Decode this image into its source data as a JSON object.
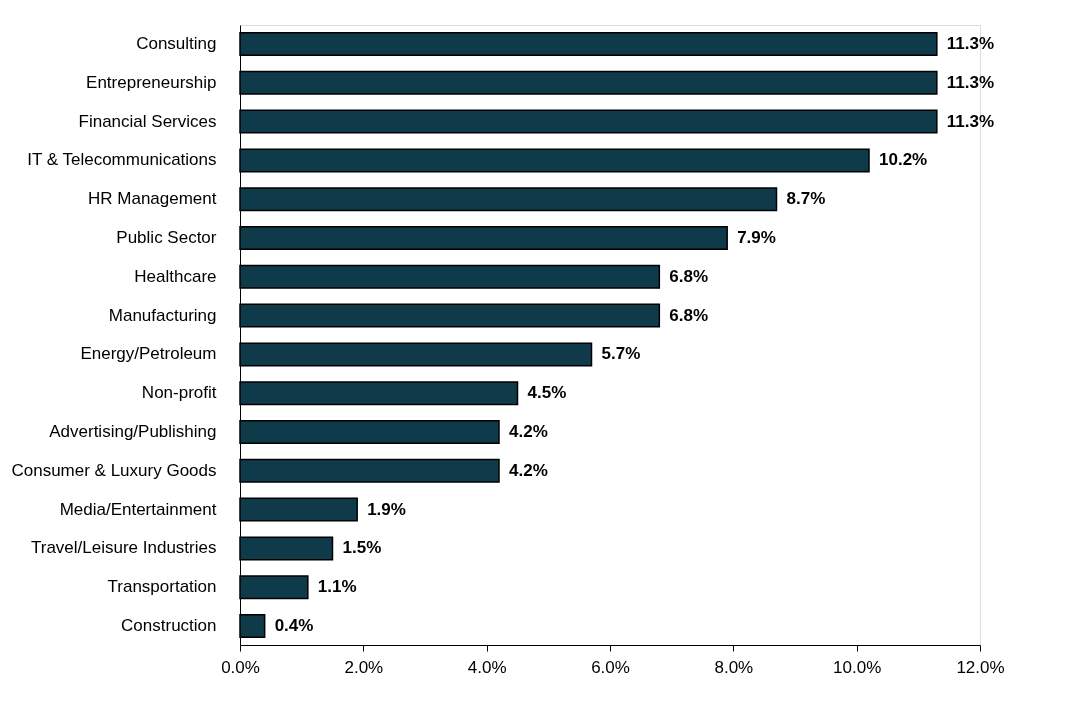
{
  "chart_data": {
    "type": "bar",
    "orientation": "horizontal",
    "categories": [
      "Consulting",
      "Entrepreneurship",
      "Financial Services",
      "IT & Telecommunications",
      "HR Management",
      "Public Sector",
      "Healthcare",
      "Manufacturing",
      "Energy/Petroleum",
      "Non-profit",
      "Advertising/Publishing",
      "Consumer & Luxury Goods",
      "Media/Entertainment",
      "Travel/Leisure Industries",
      "Transportation",
      "Construction"
    ],
    "values": [
      11.3,
      11.3,
      11.3,
      10.2,
      8.7,
      7.9,
      6.8,
      6.8,
      5.7,
      4.5,
      4.2,
      4.2,
      1.9,
      1.5,
      1.1,
      0.4
    ],
    "value_labels": [
      "11.3%",
      "11.3%",
      "11.3%",
      "10.2%",
      "8.7%",
      "7.9%",
      "6.8%",
      "6.8%",
      "5.7%",
      "4.5%",
      "4.2%",
      "4.2%",
      "1.9%",
      "1.5%",
      "1.1%",
      "0.4%"
    ],
    "color": "#0e3a4a",
    "xlim": [
      0,
      12
    ],
    "xticks": [
      {
        "value": 0,
        "label": "0.0%"
      },
      {
        "value": 2,
        "label": "2.0%"
      },
      {
        "value": 4,
        "label": "4.0%"
      },
      {
        "value": 6,
        "label": "6.0%"
      },
      {
        "value": 8,
        "label": "8.0%"
      },
      {
        "value": 10,
        "label": "10.0%"
      },
      {
        "value": 12,
        "label": "12.0%"
      }
    ],
    "grid": false
  }
}
